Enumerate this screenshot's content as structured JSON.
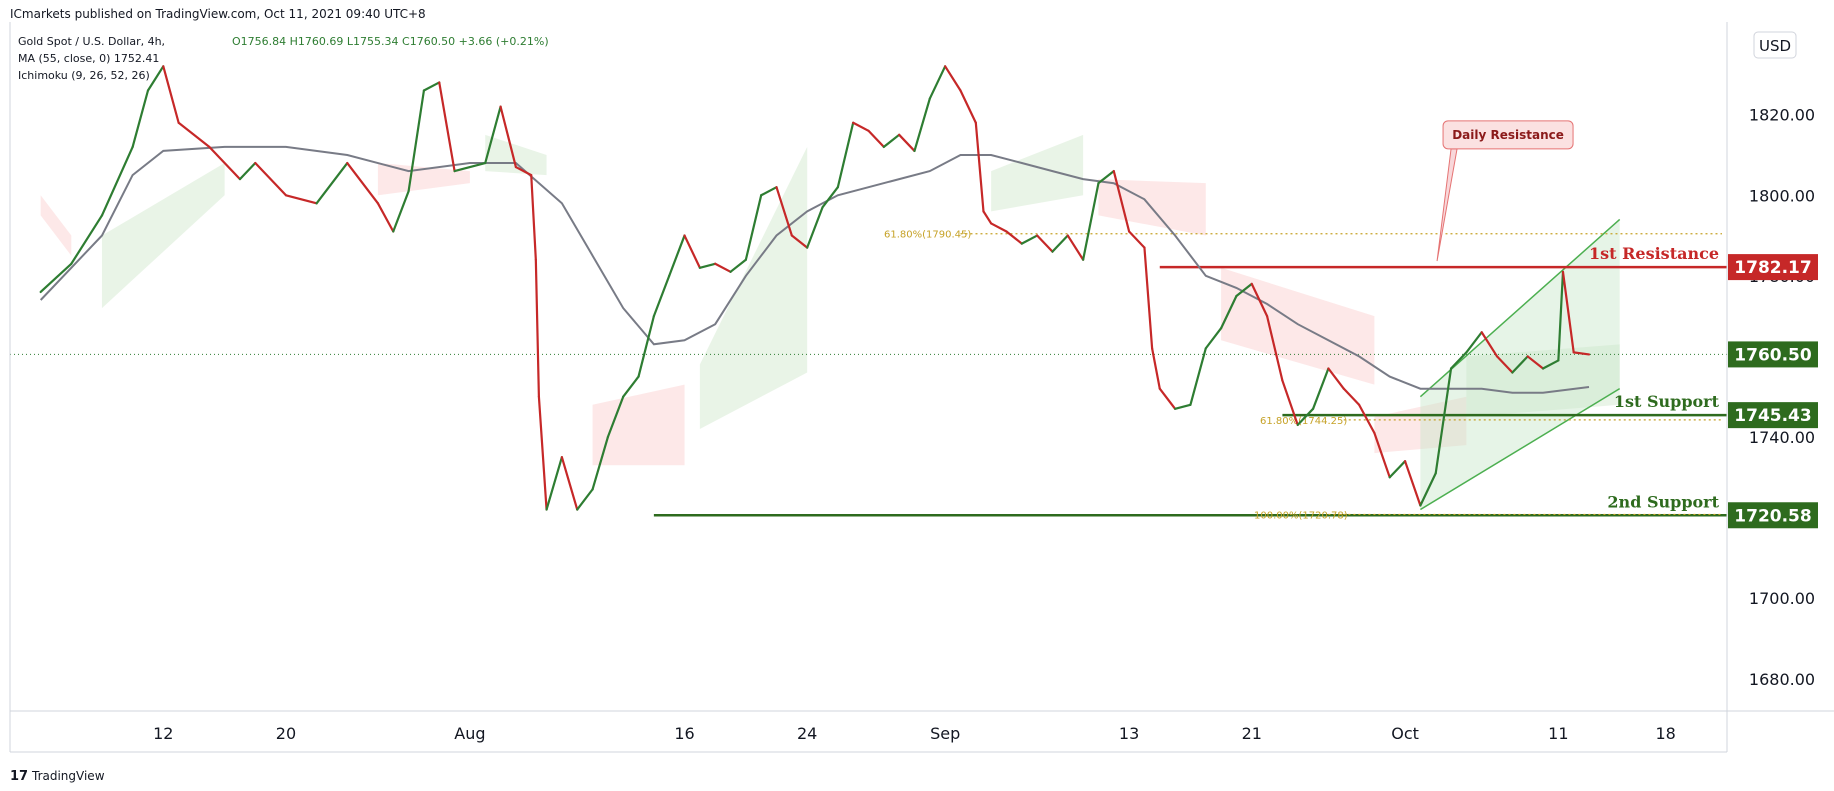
{
  "header": {
    "publisher": "ICmarkets published on TradingView.com, Oct 11, 2021 09:40 UTC+8"
  },
  "legend": {
    "symbol": "Gold Spot / U.S. Dollar, 4h,",
    "ohlc": "O1756.84  H1760.69  L1755.34  C1760.50  +3.66 (+0.21%)",
    "ma": "MA (55, close, 0)  1752.41",
    "ichimoku": "Ichimoku (9, 26, 52, 26)"
  },
  "currency": "USD",
  "colors": {
    "up": "#2e7d32",
    "down": "#c62828",
    "ma": "#787b86",
    "cloud_bull": "#e7f3e4",
    "cloud_bear": "#fde6e6",
    "resistance": "#c62828",
    "support": "#2e6b1e",
    "fib": "#c6a227",
    "channel": "#4caf50"
  },
  "annotations": {
    "daily_resistance": "Daily Resistance",
    "first_resistance": "1st Resistance",
    "first_support": "1st Support",
    "second_support": "2nd Support",
    "fib_618_sep": "61.80%(1790.45)",
    "fib_618_oct": "61.80%(1744.25)",
    "fib_100": "100.00%(1720.78)"
  },
  "footer": {
    "brand": "TradingView"
  },
  "chart_data": {
    "type": "candlestick",
    "title": "Gold Spot / U.S. Dollar, 4h",
    "timeframe": "4h",
    "ylim": [
      1672,
      1843
    ],
    "y_ticks": [
      1680,
      1700,
      1720,
      1740,
      1760,
      1780,
      1800,
      1820
    ],
    "x_ticks": [
      {
        "label": "12",
        "day": 12
      },
      {
        "label": "20",
        "day": 20
      },
      {
        "label": "Aug",
        "day": 32
      },
      {
        "label": "16",
        "day": 46
      },
      {
        "label": "24",
        "day": 54
      },
      {
        "label": "Sep",
        "day": 63
      },
      {
        "label": "13",
        "day": 75
      },
      {
        "label": "21",
        "day": 83
      },
      {
        "label": "Oct",
        "day": 93
      },
      {
        "label": "11",
        "day": 103
      },
      {
        "label": "18",
        "day": 110
      }
    ],
    "current_price": 1760.5,
    "levels": [
      {
        "name": "1st Resistance",
        "price": 1782.17,
        "label": "1782.17",
        "kind": "resistance",
        "from_day": 77
      },
      {
        "name": "1st Support",
        "price": 1745.43,
        "label": "1745.43",
        "kind": "support",
        "from_day": 85
      },
      {
        "name": "2nd Support",
        "price": 1720.58,
        "label": "1720.58",
        "kind": "support",
        "from_day": 44
      }
    ],
    "price_path": [
      [
        4,
        1776
      ],
      [
        6,
        1783
      ],
      [
        8,
        1795
      ],
      [
        10,
        1812
      ],
      [
        11,
        1826
      ],
      [
        12,
        1832
      ],
      [
        13,
        1818
      ],
      [
        15,
        1812
      ],
      [
        17,
        1804
      ],
      [
        18,
        1808
      ],
      [
        20,
        1800
      ],
      [
        22,
        1798
      ],
      [
        24,
        1808
      ],
      [
        26,
        1798
      ],
      [
        27,
        1791
      ],
      [
        28,
        1801
      ],
      [
        29,
        1826
      ],
      [
        30,
        1828
      ],
      [
        31,
        1806
      ],
      [
        33,
        1808
      ],
      [
        34,
        1822
      ],
      [
        35,
        1807
      ],
      [
        36,
        1805
      ],
      [
        36.3,
        1784
      ],
      [
        36.5,
        1750
      ],
      [
        37,
        1722
      ],
      [
        38,
        1735
      ],
      [
        39,
        1722
      ],
      [
        40,
        1727
      ],
      [
        41,
        1740
      ],
      [
        42,
        1750
      ],
      [
        43,
        1755
      ],
      [
        44,
        1770
      ],
      [
        45,
        1780
      ],
      [
        46,
        1790
      ],
      [
        47,
        1782
      ],
      [
        48,
        1783
      ],
      [
        49,
        1781
      ],
      [
        50,
        1784
      ],
      [
        51,
        1800
      ],
      [
        52,
        1802
      ],
      [
        53,
        1790
      ],
      [
        54,
        1787
      ],
      [
        55,
        1797
      ],
      [
        56,
        1802
      ],
      [
        57,
        1818
      ],
      [
        58,
        1816
      ],
      [
        59,
        1812
      ],
      [
        60,
        1815
      ],
      [
        61,
        1811
      ],
      [
        62,
        1824
      ],
      [
        63,
        1832
      ],
      [
        64,
        1826
      ],
      [
        65,
        1818
      ],
      [
        65.5,
        1796
      ],
      [
        66,
        1793
      ],
      [
        67,
        1791
      ],
      [
        68,
        1788
      ],
      [
        69,
        1790
      ],
      [
        70,
        1786
      ],
      [
        71,
        1790
      ],
      [
        72,
        1784
      ],
      [
        73,
        1803
      ],
      [
        74,
        1806
      ],
      [
        75,
        1791
      ],
      [
        76,
        1787
      ],
      [
        76.5,
        1762
      ],
      [
        77,
        1752
      ],
      [
        78,
        1747
      ],
      [
        79,
        1748
      ],
      [
        80,
        1762
      ],
      [
        81,
        1767
      ],
      [
        82,
        1775
      ],
      [
        83,
        1778
      ],
      [
        84,
        1770
      ],
      [
        85,
        1754
      ],
      [
        86,
        1743
      ],
      [
        87,
        1747
      ],
      [
        88,
        1757
      ],
      [
        89,
        1752
      ],
      [
        90,
        1748
      ],
      [
        91,
        1741
      ],
      [
        92,
        1730
      ],
      [
        93,
        1734
      ],
      [
        94,
        1723
      ],
      [
        95,
        1731
      ],
      [
        96,
        1757
      ],
      [
        97,
        1761
      ],
      [
        98,
        1766
      ],
      [
        99,
        1760
      ],
      [
        100,
        1756
      ],
      [
        101,
        1760
      ],
      [
        102,
        1757
      ],
      [
        103,
        1759
      ],
      [
        103.3,
        1781
      ],
      [
        104,
        1761
      ],
      [
        105,
        1760.5
      ]
    ],
    "ma55": [
      [
        4,
        1774
      ],
      [
        8,
        1790
      ],
      [
        10,
        1805
      ],
      [
        12,
        1811
      ],
      [
        16,
        1812
      ],
      [
        20,
        1812
      ],
      [
        24,
        1810
      ],
      [
        28,
        1806
      ],
      [
        32,
        1808
      ],
      [
        35,
        1808
      ],
      [
        38,
        1798
      ],
      [
        40,
        1785
      ],
      [
        42,
        1772
      ],
      [
        44,
        1763
      ],
      [
        46,
        1764
      ],
      [
        48,
        1768
      ],
      [
        50,
        1780
      ],
      [
        52,
        1790
      ],
      [
        54,
        1796
      ],
      [
        56,
        1800
      ],
      [
        58,
        1802
      ],
      [
        60,
        1804
      ],
      [
        62,
        1806
      ],
      [
        64,
        1810
      ],
      [
        66,
        1810
      ],
      [
        68,
        1808
      ],
      [
        70,
        1806
      ],
      [
        72,
        1804
      ],
      [
        74,
        1803
      ],
      [
        76,
        1799
      ],
      [
        78,
        1790
      ],
      [
        80,
        1780
      ],
      [
        82,
        1777
      ],
      [
        84,
        1773
      ],
      [
        86,
        1768
      ],
      [
        88,
        1764
      ],
      [
        90,
        1760
      ],
      [
        92,
        1755
      ],
      [
        94,
        1752
      ],
      [
        96,
        1752
      ],
      [
        98,
        1752
      ],
      [
        100,
        1751
      ],
      [
        102,
        1751
      ],
      [
        105,
        1752.41
      ]
    ],
    "cloud": [
      {
        "from": 4,
        "to": 6,
        "a": [
          1800,
          1790
        ],
        "b": [
          1795,
          1785
        ],
        "color": "bear"
      },
      {
        "from": 8,
        "to": 16,
        "a": [
          1790,
          1808
        ],
        "b": [
          1772,
          1800
        ],
        "color": "bull"
      },
      {
        "from": 26,
        "to": 32,
        "a": [
          1808,
          1806
        ],
        "b": [
          1800,
          1803
        ],
        "color": "bear"
      },
      {
        "from": 33,
        "to": 37,
        "a": [
          1815,
          1810
        ],
        "b": [
          1806,
          1805
        ],
        "color": "bull"
      },
      {
        "from": 40,
        "to": 46,
        "a": [
          1748,
          1753
        ],
        "b": [
          1733,
          1733
        ],
        "color": "bear"
      },
      {
        "from": 47,
        "to": 54,
        "a": [
          1758,
          1812
        ],
        "b": [
          1742,
          1756
        ],
        "color": "bull"
      },
      {
        "from": 66,
        "to": 72,
        "a": [
          1806,
          1815
        ],
        "b": [
          1796,
          1800
        ],
        "color": "bull"
      },
      {
        "from": 73,
        "to": 80,
        "a": [
          1804,
          1803
        ],
        "b": [
          1795,
          1790
        ],
        "color": "bear"
      },
      {
        "from": 81,
        "to": 91,
        "a": [
          1782,
          1770
        ],
        "b": [
          1764,
          1753
        ],
        "color": "bear"
      },
      {
        "from": 91,
        "to": 97,
        "a": [
          1745,
          1750
        ],
        "b": [
          1736,
          1738
        ],
        "color": "bear"
      },
      {
        "from": 97,
        "to": 107,
        "a": [
          1760,
          1763
        ],
        "b": [
          1745,
          1748
        ],
        "color": "bull"
      }
    ],
    "channel": {
      "lower": [
        [
          94,
          1722
        ],
        [
          107,
          1752
        ]
      ],
      "upper": [
        [
          94,
          1750
        ],
        [
          107,
          1794
        ]
      ],
      "fill_to_day": 107
    },
    "daily_resistance_box": {
      "day": 96,
      "price": 1815
    },
    "fib_618_sep_day": [
      64,
      107
    ],
    "fib_618_oct_day": [
      89,
      107
    ],
    "fib_100_day": [
      88,
      107
    ]
  }
}
